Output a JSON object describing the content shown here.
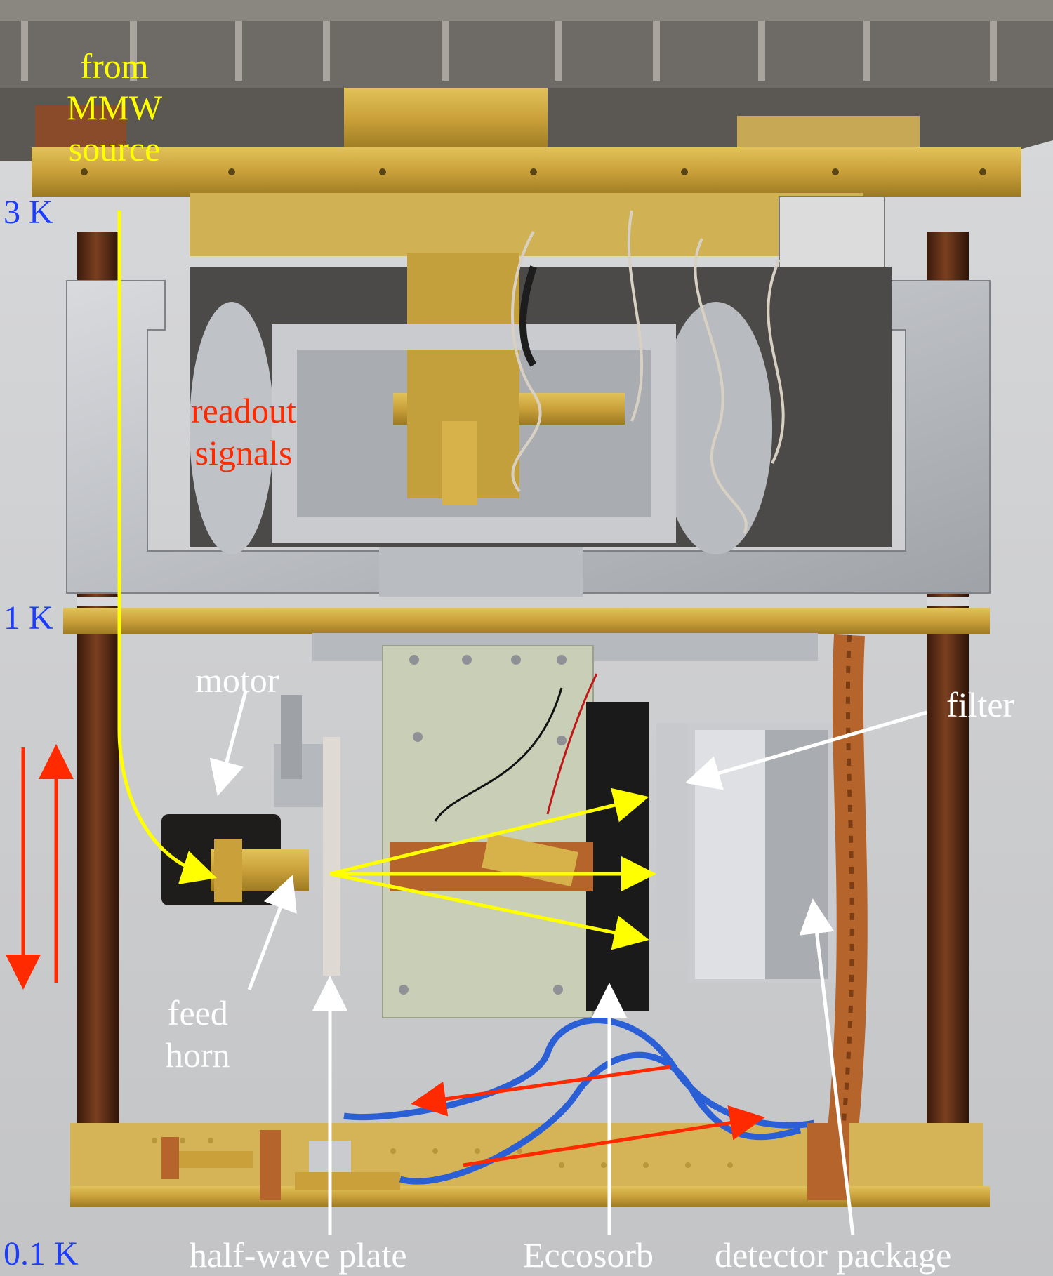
{
  "photo": {
    "description_labels": {
      "source": "from\nMMW\nsource",
      "readout": "readout\nsignals",
      "motor": "motor",
      "filter": "filter",
      "feed_horn": "feed\nhorn",
      "half_wave_plate": "half-wave plate",
      "eccosorb": "Eccosorb",
      "detector_package": "detector package"
    },
    "temperature_stages": [
      "3 K",
      "1 K",
      "0.1 K"
    ]
  },
  "colors": {
    "source_label": "#ffff00",
    "beam_arrow": "#ffff00",
    "readout_label": "#ff2a00",
    "readout_arrow": "#ff2a00",
    "motion_arrow": "#ff2a00",
    "component_label": "#ffffff",
    "temperature_label": "#1c3cff",
    "gold_plate": "#c9a53a",
    "aluminum": "#b8bbc0",
    "brown_rod": "#5a2a14",
    "copper": "#b5652b",
    "coax_blue": "#2a5fd6"
  }
}
